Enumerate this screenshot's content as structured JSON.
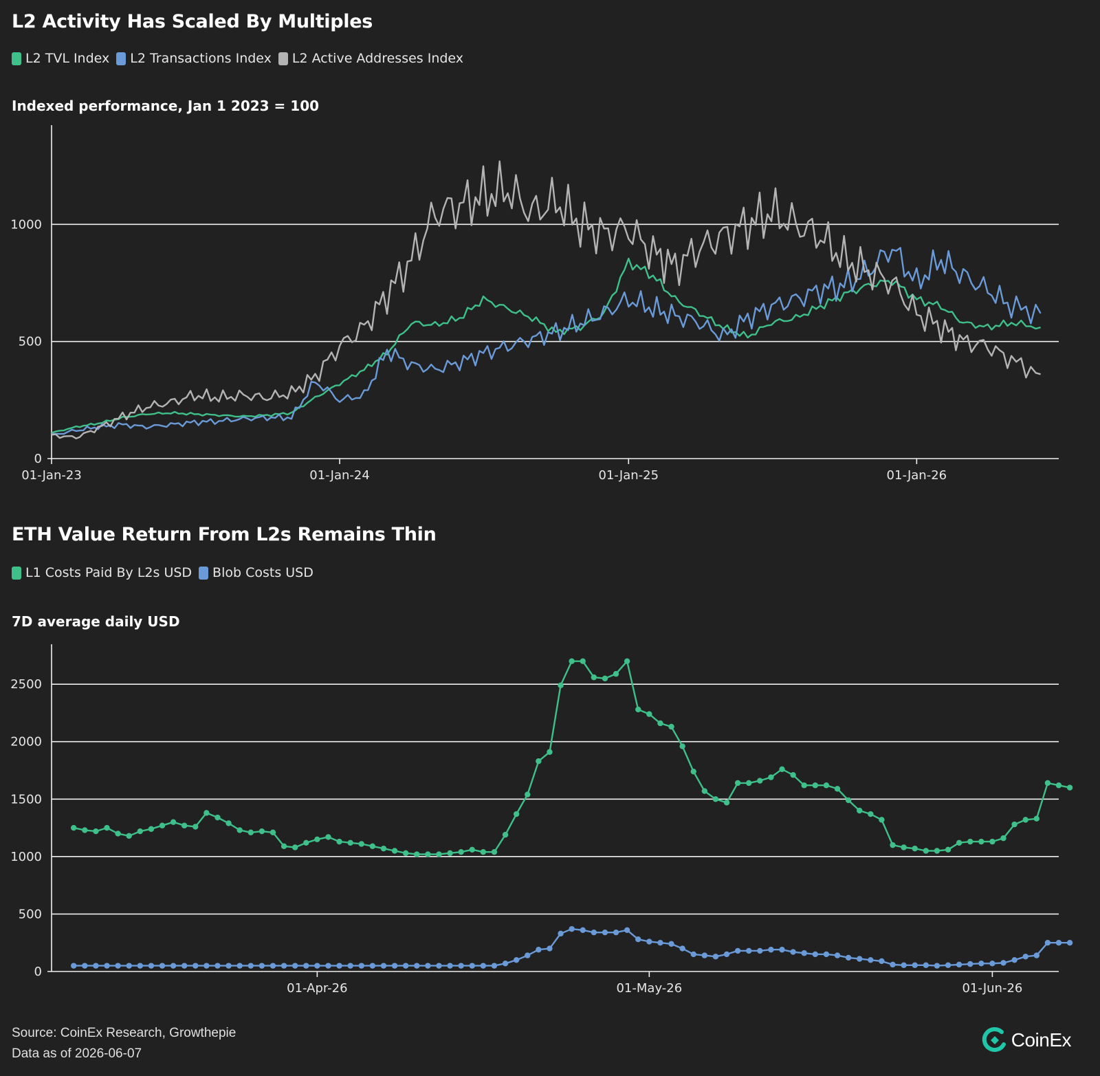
{
  "colors": {
    "green": "#3fc08a",
    "blue": "#6a9bd8",
    "gray": "#b4b4b4",
    "background": "#212121",
    "logo": "#1fc7a8"
  },
  "chart1": {
    "title": "L2 Activity Has Scaled By Multiples",
    "subtitle": "Indexed performance, Jan 1 2023 = 100",
    "legend": [
      {
        "label": "L2 TVL Index",
        "color": "#3fc08a"
      },
      {
        "label": "L2 Transactions Index",
        "color": "#6a9bd8"
      },
      {
        "label": "L2 Active Addresses Index",
        "color": "#b4b4b4"
      }
    ]
  },
  "chart2": {
    "title": "ETH Value Return From L2s Remains Thin",
    "subtitle": "7D average daily USD",
    "legend": [
      {
        "label": "L1 Costs Paid By L2s USD",
        "color": "#3fc08a"
      },
      {
        "label": "Blob Costs USD",
        "color": "#6a9bd8"
      }
    ]
  },
  "chart_data": [
    {
      "type": "line",
      "title": "L2 Activity Has Scaled By Multiples",
      "subtitle": "Indexed performance, Jan 1 2023 = 100",
      "xlabel": "",
      "ylabel": "",
      "ylim": [
        0,
        1400
      ],
      "yticks": [
        0,
        500,
        1000
      ],
      "xlim": [
        "2023-01-01",
        "2026-06-30"
      ],
      "xticks": [
        {
          "date": "2023-01-01",
          "label": "01-Jan-23"
        },
        {
          "date": "2024-01-01",
          "label": "01-Jan-24"
        },
        {
          "date": "2025-01-01",
          "label": "01-Jan-25"
        },
        {
          "date": "2026-01-01",
          "label": "01-Jan-26"
        }
      ],
      "grid": true,
      "legend": "top-left",
      "x": [
        "2023-01-01",
        "2023-02-01",
        "2023-03-01",
        "2023-04-01",
        "2023-05-01",
        "2023-06-01",
        "2023-07-01",
        "2023-08-01",
        "2023-09-01",
        "2023-10-01",
        "2023-11-01",
        "2023-12-01",
        "2024-01-01",
        "2024-02-01",
        "2024-03-01",
        "2024-04-01",
        "2024-05-01",
        "2024-06-01",
        "2024-07-01",
        "2024-08-01",
        "2024-09-01",
        "2024-10-01",
        "2024-11-01",
        "2024-12-01",
        "2025-01-01",
        "2025-02-01",
        "2025-03-01",
        "2025-04-01",
        "2025-05-01",
        "2025-06-01",
        "2025-07-01",
        "2025-08-01",
        "2025-09-01",
        "2025-10-01",
        "2025-11-01",
        "2025-12-01",
        "2026-01-01",
        "2026-02-01",
        "2026-03-01",
        "2026-04-01",
        "2026-05-01",
        "2026-06-07"
      ],
      "series": [
        {
          "name": "L2 TVL Index",
          "color": "#3fc08a",
          "values": [
            110,
            135,
            150,
            175,
            190,
            195,
            190,
            185,
            180,
            185,
            195,
            260,
            320,
            380,
            450,
            580,
            570,
            600,
            680,
            640,
            600,
            540,
            560,
            620,
            840,
            780,
            680,
            620,
            560,
            520,
            580,
            600,
            650,
            700,
            740,
            760,
            680,
            650,
            580,
            560,
            580,
            560
          ]
        },
        {
          "name": "L2 Transactions Index",
          "color": "#6a9bd8",
          "values": [
            100,
            120,
            135,
            145,
            135,
            145,
            155,
            160,
            170,
            175,
            175,
            330,
            250,
            270,
            460,
            400,
            380,
            410,
            450,
            480,
            510,
            540,
            580,
            620,
            680,
            640,
            610,
            580,
            520,
            600,
            650,
            680,
            720,
            740,
            800,
            900,
            750,
            850,
            780,
            720,
            650,
            620
          ]
        },
        {
          "name": "L2 Active Addresses Index",
          "color": "#b4b4b4",
          "values": [
            100,
            90,
            130,
            180,
            220,
            240,
            270,
            260,
            270,
            260,
            280,
            350,
            480,
            560,
            700,
            850,
            1050,
            1080,
            1120,
            1150,
            1050,
            1100,
            1000,
            960,
            980,
            880,
            820,
            900,
            950,
            1000,
            1050,
            1000,
            950,
            850,
            800,
            750,
            620,
            560,
            500,
            480,
            420,
            360
          ]
        }
      ]
    },
    {
      "type": "line",
      "title": "ETH Value Return From L2s Remains Thin",
      "subtitle": "7D average daily USD",
      "xlabel": "",
      "ylabel": "",
      "ylim": [
        0,
        2800
      ],
      "yticks": [
        0,
        500,
        1000,
        1500,
        2000,
        2500
      ],
      "xlim": [
        "2026-03-08",
        "2026-06-07"
      ],
      "xticks": [
        {
          "date": "2026-04-01",
          "label": "01-Apr-26"
        },
        {
          "date": "2026-05-01",
          "label": "01-May-26"
        },
        {
          "date": "2026-06-01",
          "label": "01-Jun-26"
        }
      ],
      "grid": true,
      "legend": "top-left",
      "start_date": "2026-03-10",
      "series": [
        {
          "name": "L1 Costs Paid By L2s USD",
          "color": "#3fc08a",
          "values": [
            1250,
            1230,
            1220,
            1250,
            1200,
            1180,
            1220,
            1240,
            1270,
            1300,
            1270,
            1260,
            1380,
            1340,
            1290,
            1230,
            1210,
            1220,
            1210,
            1090,
            1080,
            1120,
            1150,
            1170,
            1130,
            1120,
            1110,
            1090,
            1070,
            1050,
            1030,
            1020,
            1020,
            1020,
            1030,
            1040,
            1060,
            1040,
            1040,
            1190,
            1370,
            1540,
            1830,
            1910,
            2490,
            2700,
            2700,
            2560,
            2550,
            2590,
            2700,
            2280,
            2240,
            2160,
            2130,
            1960,
            1740,
            1570,
            1500,
            1470,
            1640,
            1640,
            1660,
            1690,
            1760,
            1710,
            1620,
            1620,
            1620,
            1590,
            1490,
            1400,
            1370,
            1320,
            1100,
            1080,
            1070,
            1050,
            1050,
            1060,
            1120,
            1130,
            1130,
            1130,
            1160,
            1280,
            1320,
            1330,
            1640,
            1620,
            1600
          ]
        },
        {
          "name": "Blob Costs USD",
          "color": "#6a9bd8",
          "values": [
            50,
            50,
            50,
            50,
            50,
            50,
            50,
            50,
            50,
            50,
            50,
            50,
            50,
            50,
            50,
            50,
            50,
            50,
            50,
            50,
            50,
            50,
            50,
            50,
            50,
            50,
            50,
            50,
            50,
            50,
            50,
            50,
            50,
            50,
            50,
            50,
            50,
            50,
            50,
            70,
            100,
            140,
            190,
            200,
            330,
            370,
            360,
            340,
            340,
            340,
            360,
            280,
            260,
            250,
            240,
            200,
            150,
            140,
            130,
            150,
            180,
            180,
            180,
            190,
            190,
            170,
            160,
            150,
            150,
            140,
            120,
            110,
            100,
            90,
            60,
            55,
            55,
            55,
            50,
            55,
            60,
            65,
            70,
            70,
            75,
            100,
            130,
            140,
            250,
            250,
            250
          ]
        }
      ]
    }
  ],
  "footer": {
    "source": "Source: CoinEx Research, Growthepie",
    "asof": "Data as of 2026-06-07",
    "logo_text": "CoinEx"
  }
}
